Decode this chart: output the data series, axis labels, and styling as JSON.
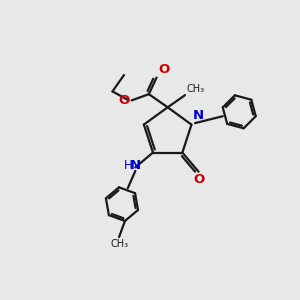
{
  "bg_color": "#e8e8e8",
  "bond_color": "#1a1a1a",
  "n_color": "#0000cc",
  "o_color": "#cc0000",
  "line_width": 1.6,
  "font_size": 8.5,
  "fig_size": [
    3.0,
    3.0
  ],
  "dpi": 100,
  "xlim": [
    0,
    10
  ],
  "ylim": [
    0,
    10
  ]
}
